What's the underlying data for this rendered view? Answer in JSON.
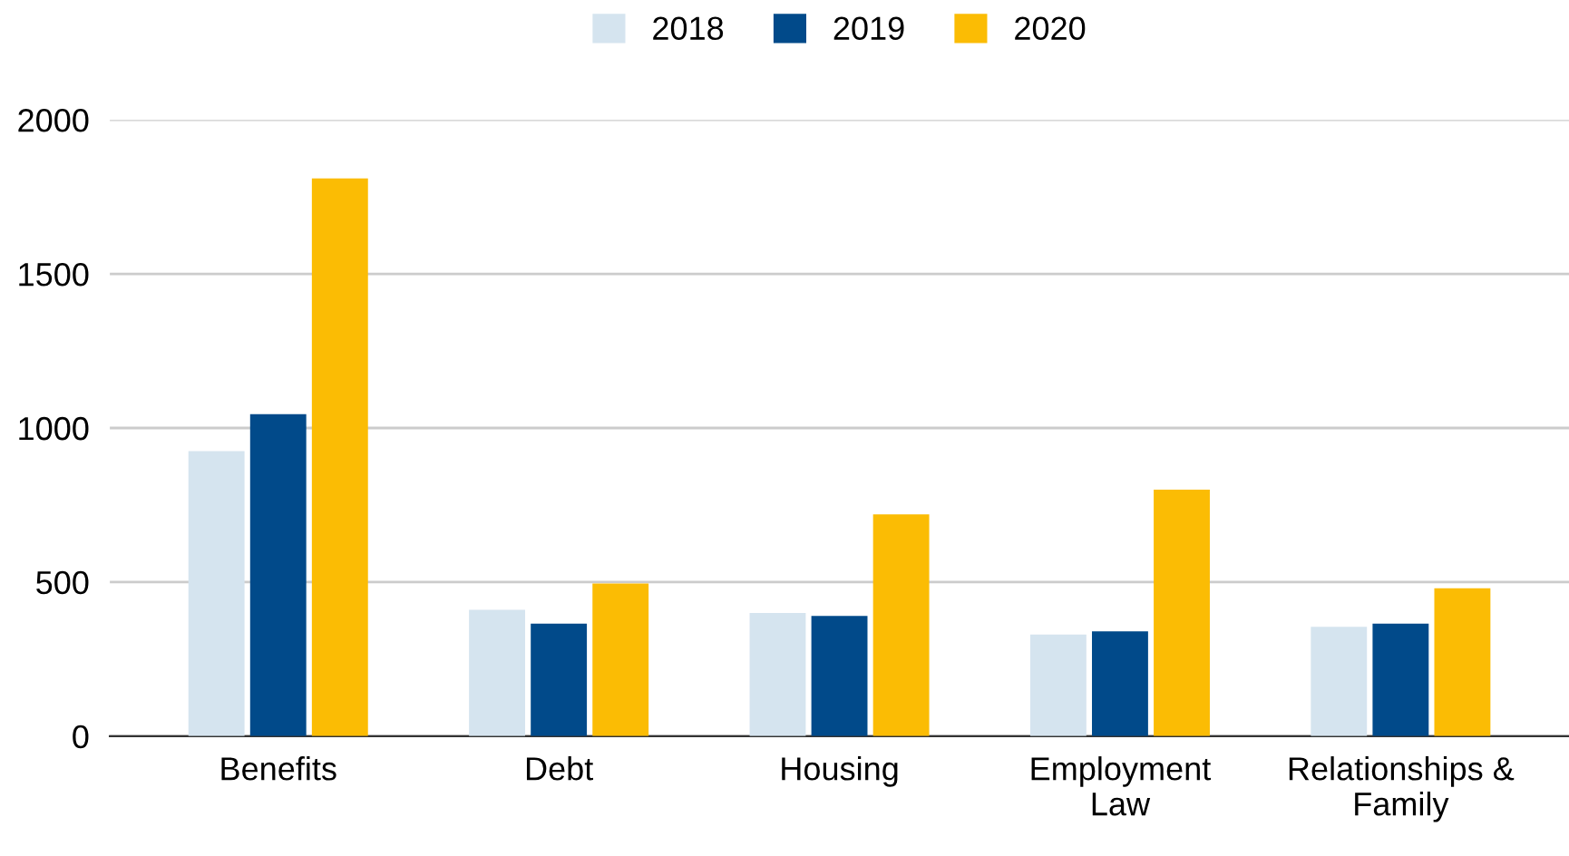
{
  "chart_data": {
    "type": "bar",
    "categories": [
      "Benefits",
      "Debt",
      "Housing",
      "Employment Law",
      "Relationships & Family"
    ],
    "series": [
      {
        "name": "2018",
        "color": "#d5e4ef",
        "values": [
          925,
          410,
          400,
          330,
          355
        ]
      },
      {
        "name": "2019",
        "color": "#014a8a",
        "values": [
          1045,
          365,
          390,
          340,
          365
        ]
      },
      {
        "name": "2020",
        "color": "#fbbc04",
        "values": [
          1810,
          495,
          720,
          800,
          480
        ]
      }
    ],
    "ylim": [
      0,
      2000
    ],
    "yticks": [
      0,
      500,
      1000,
      1500,
      2000
    ],
    "grid": "y",
    "legend": "top"
  }
}
